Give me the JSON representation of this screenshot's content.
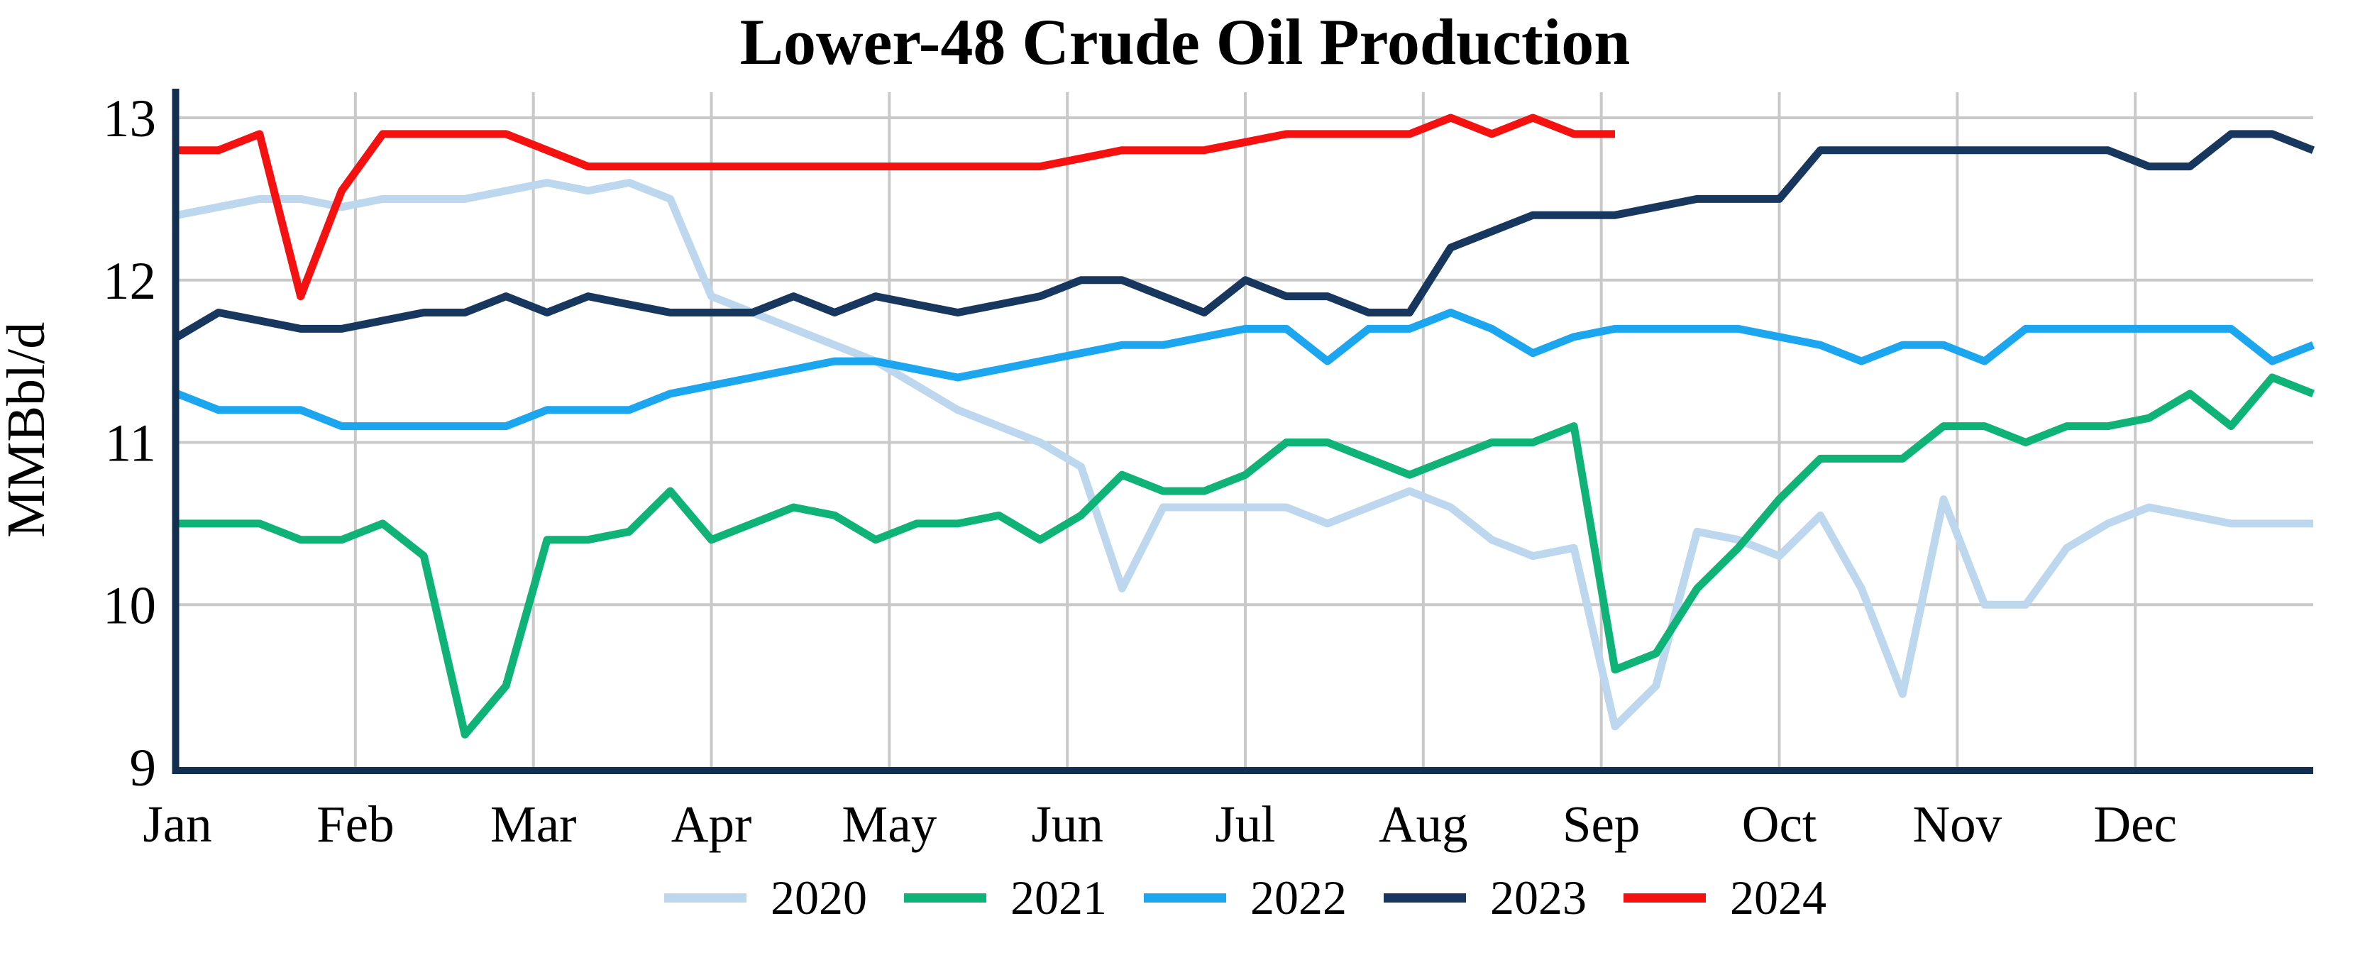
{
  "title": "Lower-48 Crude Oil Production",
  "colors": {
    "background": "#ffffff",
    "axis": "#122f4f",
    "grid": "#c9c9c9",
    "text": "#000000"
  },
  "chart_data": {
    "type": "line",
    "title": "Lower-48 Crude Oil Production",
    "xlabel": "",
    "ylabel": "MMBbl/d",
    "ylim": [
      9,
      13.3
    ],
    "yticks": [
      9,
      10,
      11,
      12,
      13
    ],
    "x_categories": [
      "Jan",
      "Feb",
      "Mar",
      "Apr",
      "May",
      "Jun",
      "Jul",
      "Aug",
      "Sep",
      "Oct",
      "Nov",
      "Dec"
    ],
    "x_unit": "week",
    "weeks_per_month": [
      4,
      4,
      5,
      4,
      5,
      4,
      5,
      4,
      5,
      4,
      4,
      5
    ],
    "grid": true,
    "legend_position": "bottom",
    "series": [
      {
        "name": "2020",
        "color": "#bdd7ee",
        "values": [
          12.4,
          12.45,
          12.5,
          12.5,
          12.45,
          12.5,
          12.5,
          12.5,
          12.55,
          12.6,
          12.55,
          12.6,
          12.5,
          11.9,
          11.8,
          11.7,
          11.6,
          11.5,
          11.35,
          11.2,
          11.1,
          11.0,
          10.85,
          10.1,
          10.6,
          10.6,
          10.6,
          10.6,
          10.5,
          10.6,
          10.7,
          10.6,
          10.4,
          10.3,
          10.35,
          9.25,
          9.5,
          10.45,
          10.4,
          10.3,
          10.55,
          10.1,
          9.45,
          10.65,
          10.0,
          10.0,
          10.35,
          10.5,
          10.6,
          10.55,
          10.5,
          10.5,
          10.5
        ]
      },
      {
        "name": "2021",
        "color": "#0fb277",
        "values": [
          10.5,
          10.5,
          10.5,
          10.4,
          10.4,
          10.5,
          10.3,
          9.2,
          9.5,
          10.4,
          10.4,
          10.45,
          10.7,
          10.4,
          10.5,
          10.6,
          10.55,
          10.4,
          10.5,
          10.5,
          10.55,
          10.4,
          10.55,
          10.8,
          10.7,
          10.7,
          10.8,
          11.0,
          11.0,
          10.9,
          10.8,
          10.9,
          11.0,
          11.0,
          11.1,
          9.6,
          9.7,
          10.1,
          10.35,
          10.65,
          10.9,
          10.9,
          10.9,
          11.1,
          11.1,
          11.0,
          11.1,
          11.1,
          11.15,
          11.3,
          11.1,
          11.4,
          11.3
        ]
      },
      {
        "name": "2022",
        "color": "#1ba6ef",
        "values": [
          11.3,
          11.2,
          11.2,
          11.2,
          11.1,
          11.1,
          11.1,
          11.1,
          11.1,
          11.2,
          11.2,
          11.2,
          11.3,
          11.35,
          11.4,
          11.45,
          11.5,
          11.5,
          11.45,
          11.4,
          11.45,
          11.5,
          11.55,
          11.6,
          11.6,
          11.65,
          11.7,
          11.7,
          11.5,
          11.7,
          11.7,
          11.8,
          11.7,
          11.55,
          11.65,
          11.7,
          11.7,
          11.7,
          11.7,
          11.65,
          11.6,
          11.5,
          11.6,
          11.6,
          11.5,
          11.7,
          11.7,
          11.7,
          11.7,
          11.7,
          11.7,
          11.5,
          11.6
        ]
      },
      {
        "name": "2023",
        "color": "#17375e",
        "values": [
          11.65,
          11.8,
          11.75,
          11.7,
          11.7,
          11.75,
          11.8,
          11.8,
          11.9,
          11.8,
          11.9,
          11.85,
          11.8,
          11.8,
          11.8,
          11.9,
          11.8,
          11.9,
          11.85,
          11.8,
          11.85,
          11.9,
          12.0,
          12.0,
          11.9,
          11.8,
          12.0,
          11.9,
          11.9,
          11.8,
          11.8,
          12.2,
          12.3,
          12.4,
          12.4,
          12.4,
          12.45,
          12.5,
          12.5,
          12.5,
          12.8,
          12.8,
          12.8,
          12.8,
          12.8,
          12.8,
          12.8,
          12.8,
          12.7,
          12.7,
          12.9,
          12.9,
          12.8
        ]
      },
      {
        "name": "2024",
        "color": "#f61111",
        "values": [
          12.8,
          12.8,
          12.9,
          11.9,
          12.55,
          12.9,
          12.9,
          12.9,
          12.9,
          12.8,
          12.7,
          12.7,
          12.7,
          12.7,
          12.7,
          12.7,
          12.7,
          12.7,
          12.7,
          12.7,
          12.7,
          12.7,
          12.75,
          12.8,
          12.8,
          12.8,
          12.85,
          12.9,
          12.9,
          12.9,
          12.9,
          13.0,
          12.9,
          13.0,
          12.9,
          12.9
        ]
      }
    ]
  }
}
